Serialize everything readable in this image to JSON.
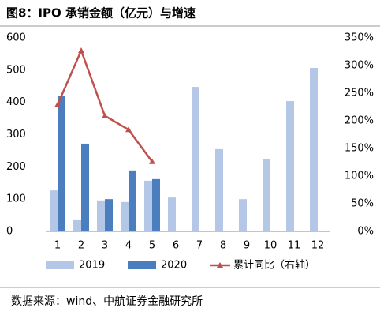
{
  "chart_data": {
    "type": "bar",
    "title": "图8：IPO 承销金额（亿元）与增速",
    "source": "数据来源：wind、中航证券金融研究所",
    "categories": [
      "1",
      "2",
      "3",
      "4",
      "5",
      "6",
      "7",
      "8",
      "9",
      "10",
      "11",
      "12"
    ],
    "series": [
      {
        "name": "2019",
        "color": "#b4c7e7",
        "values": [
          127,
          37,
          96,
          91,
          157,
          105,
          448,
          255,
          100,
          225,
          404,
          507
        ]
      },
      {
        "name": "2020",
        "color": "#4a7ebf",
        "values": [
          419,
          272,
          100,
          189,
          162,
          null,
          null,
          null,
          null,
          null,
          null,
          null
        ]
      },
      {
        "name": "累计同比（右轴）",
        "color": "#c0504d",
        "type": "line",
        "axis": "y2",
        "values": [
          229,
          327,
          209,
          184,
          126,
          null,
          null,
          null,
          null,
          null,
          null,
          null
        ]
      }
    ],
    "ylim": [
      0,
      600
    ],
    "yticks": [
      0,
      100,
      200,
      300,
      400,
      500,
      600
    ],
    "y2lim": [
      0,
      350
    ],
    "y2ticks": [
      {
        "value": 0,
        "label": "0%"
      },
      {
        "value": 50,
        "label": "50%"
      },
      {
        "value": 100,
        "label": "100%"
      },
      {
        "value": 150,
        "label": "150%"
      },
      {
        "value": 200,
        "label": "200%"
      },
      {
        "value": 250,
        "label": "250%"
      },
      {
        "value": 300,
        "label": "300%"
      },
      {
        "value": 350,
        "label": "350%"
      }
    ],
    "legend": "bottom"
  }
}
